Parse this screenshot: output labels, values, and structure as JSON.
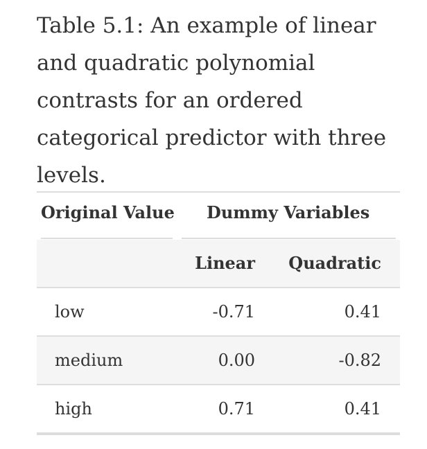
{
  "caption": "Table 5.1: An example of linear and quadratic polynomial contrasts for an ordered categorical predictor with three levels.",
  "table": {
    "group_headers": {
      "original_value": "Original Value",
      "dummy_variables": "Dummy Variables"
    },
    "sub_headers": {
      "linear": "Linear",
      "quadratic": "Quadratic"
    },
    "rows": [
      {
        "level": "low",
        "linear": "-0.71",
        "quadratic": "0.41"
      },
      {
        "level": "medium",
        "linear": "0.00",
        "quadratic": "-0.82"
      },
      {
        "level": "high",
        "linear": "0.71",
        "quadratic": "0.41"
      }
    ]
  }
}
